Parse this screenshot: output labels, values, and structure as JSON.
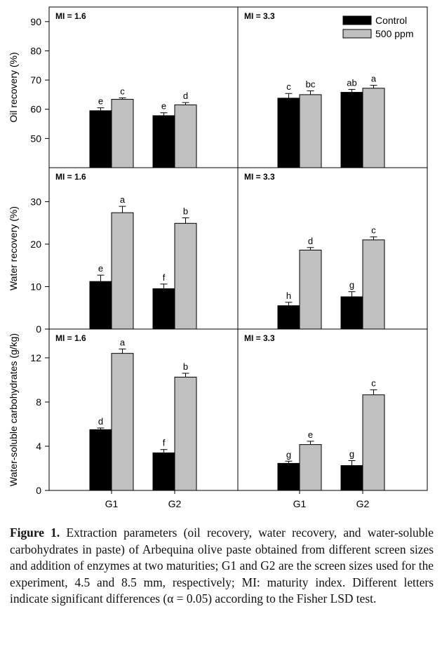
{
  "figure": {
    "legend": [
      {
        "label": "Control",
        "color": "#000000"
      },
      {
        "label": "500 ppm",
        "color": "#c0c0c0"
      }
    ],
    "colors": {
      "control": "#000000",
      "enzyme": "#c0c0c0",
      "axis": "#000000"
    }
  },
  "chart_data": [
    {
      "type": "bar",
      "row": 0,
      "col": 0,
      "panel_label": "MI = 1.6",
      "ylabel": "Oil recovery (%)",
      "ylim": [
        40,
        95
      ],
      "yticks": [
        50,
        60,
        70,
        80,
        90
      ],
      "categories": [
        "G1",
        "G2"
      ],
      "series": [
        {
          "name": "Control",
          "values": [
            59.5,
            57.8
          ],
          "errors": [
            1.0,
            1.0
          ],
          "letters": [
            "e",
            "e"
          ]
        },
        {
          "name": "500 ppm",
          "values": [
            63.4,
            61.5
          ],
          "errors": [
            0.5,
            0.8
          ],
          "letters": [
            "c",
            "d"
          ]
        }
      ]
    },
    {
      "type": "bar",
      "row": 0,
      "col": 1,
      "panel_label": "MI = 3.3",
      "ylabel": "Oil recovery (%)",
      "ylim": [
        40,
        95
      ],
      "yticks": [
        50,
        60,
        70,
        80,
        90
      ],
      "categories": [
        "G1",
        "G2"
      ],
      "series": [
        {
          "name": "Control",
          "values": [
            63.8,
            65.8
          ],
          "errors": [
            1.6,
            1.0
          ],
          "letters": [
            "c",
            "ab"
          ]
        },
        {
          "name": "500 ppm",
          "values": [
            65.0,
            67.2
          ],
          "errors": [
            1.3,
            1.0
          ],
          "letters": [
            "bc",
            "a"
          ]
        }
      ]
    },
    {
      "type": "bar",
      "row": 1,
      "col": 0,
      "panel_label": "MI = 1.6",
      "ylabel": "Water recovery (%)",
      "ylim": [
        0,
        38
      ],
      "yticks": [
        0,
        10,
        20,
        30
      ],
      "categories": [
        "G1",
        "G2"
      ],
      "series": [
        {
          "name": "Control",
          "values": [
            11.2,
            9.5
          ],
          "errors": [
            1.5,
            1.1
          ],
          "letters": [
            "e",
            "f"
          ]
        },
        {
          "name": "500 ppm",
          "values": [
            27.4,
            24.9
          ],
          "errors": [
            1.5,
            1.3
          ],
          "letters": [
            "a",
            "b"
          ]
        }
      ]
    },
    {
      "type": "bar",
      "row": 1,
      "col": 1,
      "panel_label": "MI = 3.3",
      "ylabel": "Water recovery (%)",
      "ylim": [
        0,
        38
      ],
      "yticks": [
        0,
        10,
        20,
        30
      ],
      "categories": [
        "G1",
        "G2"
      ],
      "series": [
        {
          "name": "Control",
          "values": [
            5.5,
            7.6
          ],
          "errors": [
            0.8,
            1.2
          ],
          "letters": [
            "h",
            "g"
          ]
        },
        {
          "name": "500 ppm",
          "values": [
            18.6,
            21.0
          ],
          "errors": [
            0.6,
            0.7
          ],
          "letters": [
            "d",
            "c"
          ]
        }
      ]
    },
    {
      "type": "bar",
      "row": 2,
      "col": 0,
      "panel_label": "MI = 1.6",
      "ylabel": "Water-soluble carbohydrates (g/kg)",
      "ylim": [
        0,
        14.6
      ],
      "yticks": [
        0,
        4,
        8,
        12
      ],
      "categories": [
        "G1",
        "G2"
      ],
      "series": [
        {
          "name": "Control",
          "values": [
            5.5,
            3.4
          ],
          "errors": [
            0.15,
            0.3
          ],
          "letters": [
            "d",
            "f"
          ]
        },
        {
          "name": "500 ppm",
          "values": [
            12.4,
            10.25
          ],
          "errors": [
            0.4,
            0.35
          ],
          "letters": [
            "a",
            "b"
          ]
        }
      ]
    },
    {
      "type": "bar",
      "row": 2,
      "col": 1,
      "panel_label": "MI = 3.3",
      "ylabel": "Water-soluble carbohydrates (g/kg)",
      "ylim": [
        0,
        14.6
      ],
      "yticks": [
        0,
        4,
        8,
        12
      ],
      "categories": [
        "G1",
        "G2"
      ],
      "series": [
        {
          "name": "Control",
          "values": [
            2.45,
            2.25
          ],
          "errors": [
            0.2,
            0.45
          ],
          "letters": [
            "g",
            "g"
          ]
        },
        {
          "name": "500 ppm",
          "values": [
            4.15,
            8.65
          ],
          "errors": [
            0.3,
            0.45
          ],
          "letters": [
            "e",
            "c"
          ]
        }
      ]
    }
  ],
  "caption": {
    "label": "Figure 1.",
    "text": " Extraction parameters (oil recovery, water recovery, and water-soluble carbohydrates in paste) of Arbequina olive paste obtained from different screen sizes and addition of enzymes at two maturities; G1 and G2 are the screen sizes used for the experiment, 4.5 and 8.5 mm, respectively; MI: maturity index. Different letters indicate significant differences (α = 0.05) according to the Fisher LSD test."
  }
}
